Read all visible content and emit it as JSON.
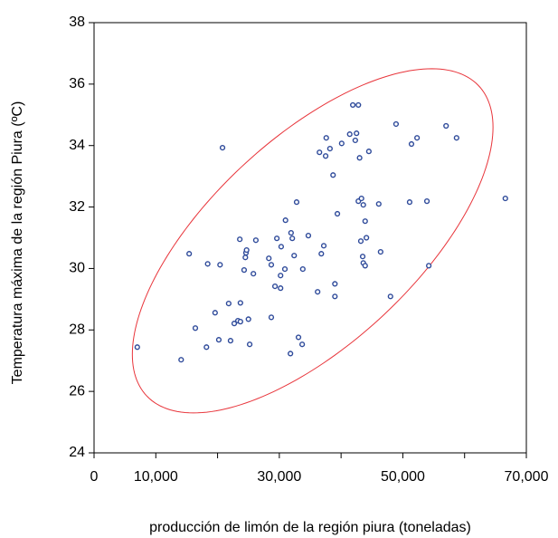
{
  "chart_data": {
    "type": "scatter",
    "x_label": "producción de limón de la región piura (toneladas)",
    "y_label": "Temperatura máxima de la región Piura (ºC)",
    "color": "#2e4a9a",
    "xlim": [
      0,
      70000
    ],
    "ylim": [
      24,
      38
    ],
    "xticks": [
      0,
      {
        "value": 10000,
        "label": "10,000"
      },
      {
        "value": 30000,
        "label": "30,000"
      },
      {
        "value": 50000,
        "label": "50,000"
      },
      {
        "value": 70000,
        "label": "70,000"
      }
    ],
    "xminor_ticks": [
      20000,
      40000,
      60000
    ],
    "yticks": [
      24,
      26,
      28,
      30,
      32,
      34,
      36,
      38
    ],
    "ellipse": {
      "center": [
        35400,
        30.9
      ],
      "x_radius": 29200,
      "y_radius": 5.6,
      "correlation": 0.66,
      "color": "#e8343a"
    },
    "x": [
      7000,
      14100,
      15400,
      16400,
      18400,
      18200,
      20400,
      20800,
      19600,
      20200,
      21800,
      22100,
      22700,
      23300,
      23700,
      23700,
      23600,
      24300,
      24500,
      24600,
      24700,
      25000,
      25200,
      25800,
      26200,
      28300,
      28700,
      28700,
      29300,
      29600,
      30200,
      30200,
      30300,
      30900,
      31000,
      31800,
      31900,
      32100,
      32400,
      32800,
      33100,
      33700,
      33800,
      34700,
      36200,
      36500,
      36800,
      37200,
      37600,
      37500,
      38200,
      38700,
      39000,
      39000,
      39400,
      40100,
      41400,
      41900,
      42300,
      42500,
      42800,
      42800,
      43000,
      43200,
      43300,
      43500,
      43600,
      43600,
      43900,
      43900,
      44100,
      44500,
      46100,
      46400,
      48000,
      48900,
      51400,
      51100,
      52300,
      53900,
      54200,
      57000,
      58700,
      66600
    ],
    "values": [
      27.44,
      27.03,
      30.48,
      28.06,
      30.15,
      27.44,
      30.12,
      33.93,
      28.56,
      27.68,
      28.86,
      27.65,
      28.21,
      28.3,
      28.27,
      28.88,
      30.95,
      29.95,
      30.36,
      30.51,
      30.6,
      28.35,
      27.53,
      29.83,
      30.92,
      30.33,
      30.12,
      28.41,
      29.42,
      30.98,
      29.36,
      29.77,
      30.71,
      29.98,
      31.57,
      27.23,
      31.16,
      30.98,
      30.42,
      32.16,
      27.76,
      27.53,
      29.98,
      31.07,
      29.24,
      33.78,
      30.48,
      30.74,
      34.25,
      33.66,
      33.9,
      33.04,
      29.5,
      29.09,
      31.78,
      34.07,
      34.37,
      35.32,
      34.17,
      34.4,
      35.32,
      32.19,
      33.6,
      30.89,
      32.28,
      30.39,
      32.07,
      30.18,
      31.54,
      30.09,
      31.0,
      33.81,
      32.1,
      30.54,
      29.09,
      34.7,
      34.05,
      32.16,
      34.25,
      32.19,
      30.09,
      34.64,
      34.25,
      32.28
    ]
  }
}
